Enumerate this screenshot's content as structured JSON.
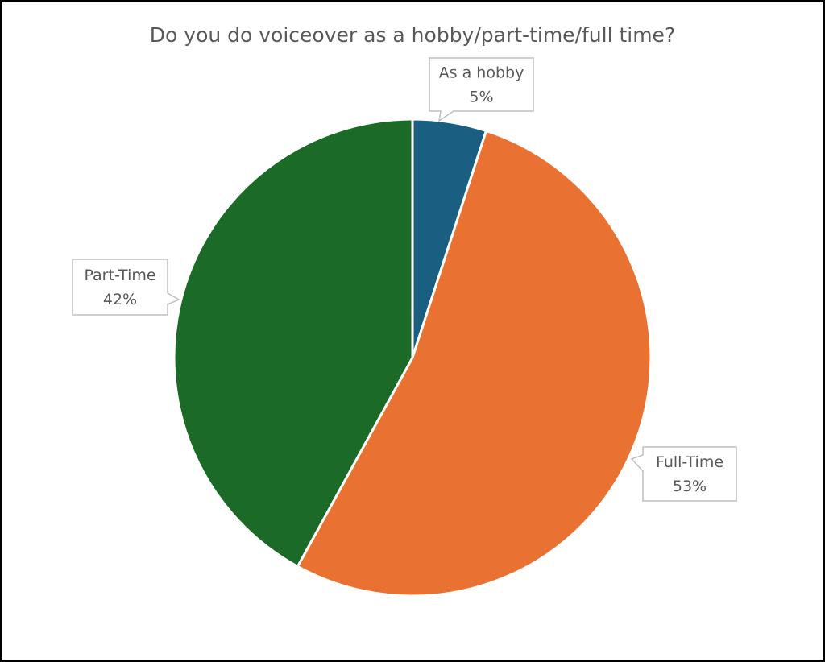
{
  "chart_data": {
    "type": "pie",
    "title": "Do you do voiceover as a hobby/part-time/full time?",
    "categories": [
      "As a hobby",
      "Full-Time",
      "Part-Time"
    ],
    "values": [
      5,
      53,
      42
    ],
    "value_labels": [
      "5%",
      "53%",
      "42%"
    ],
    "colors": [
      "#1a5f82",
      "#e97132",
      "#1b6a27"
    ]
  }
}
